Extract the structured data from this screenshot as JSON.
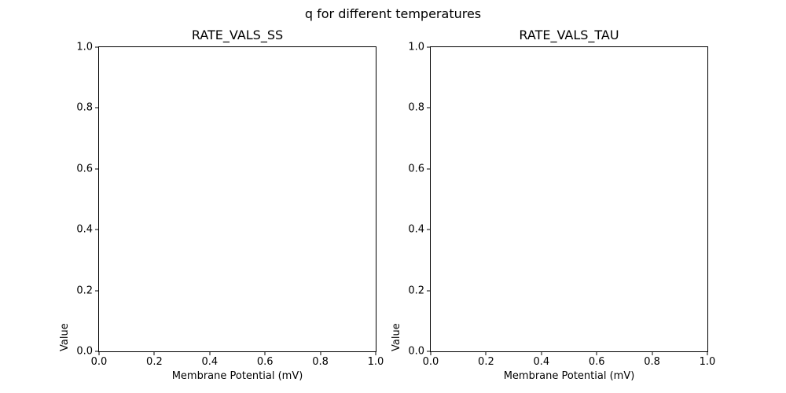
{
  "figure": {
    "suptitle": "q for different temperatures",
    "background_color": "#ffffff",
    "text_color": "#000000",
    "spine_color": "#000000"
  },
  "chart_data": [
    {
      "type": "line",
      "title": "RATE_VALS_SS",
      "xlabel": "Membrane Potential (mV)",
      "ylabel": "Value",
      "xlim": [
        0.0,
        1.0
      ],
      "ylim": [
        0.0,
        1.0
      ],
      "xticks": [
        0.0,
        0.2,
        0.4,
        0.6,
        0.8,
        1.0
      ],
      "xtick_labels": [
        "0.0",
        "0.2",
        "0.4",
        "0.6",
        "0.8",
        "1.0"
      ],
      "yticks": [
        0.0,
        0.2,
        0.4,
        0.6,
        0.8,
        1.0
      ],
      "ytick_labels": [
        "0.0",
        "0.2",
        "0.4",
        "0.6",
        "0.8",
        "1.0"
      ],
      "series": [],
      "grid": false,
      "legend": "none"
    },
    {
      "type": "line",
      "title": "RATE_VALS_TAU",
      "xlabel": "Membrane Potential (mV)",
      "ylabel": "Value",
      "xlim": [
        0.0,
        1.0
      ],
      "ylim": [
        0.0,
        1.0
      ],
      "xticks": [
        0.0,
        0.2,
        0.4,
        0.6,
        0.8,
        1.0
      ],
      "xtick_labels": [
        "0.0",
        "0.2",
        "0.4",
        "0.6",
        "0.8",
        "1.0"
      ],
      "yticks": [
        0.0,
        0.2,
        0.4,
        0.6,
        0.8,
        1.0
      ],
      "ytick_labels": [
        "0.0",
        "0.2",
        "0.4",
        "0.6",
        "0.8",
        "1.0"
      ],
      "series": [],
      "grid": false,
      "legend": "none"
    }
  ]
}
